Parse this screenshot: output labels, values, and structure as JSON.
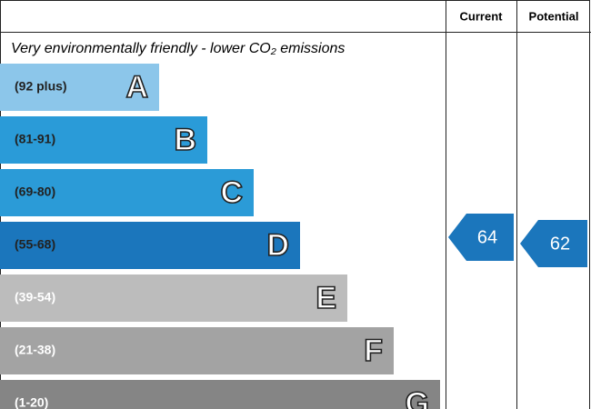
{
  "header": {
    "current": "Current",
    "potential": "Potential"
  },
  "title": "Very environmentally friendly - lower CO₂ emissions",
  "bands": [
    {
      "range": "(92 plus)",
      "letter": "A",
      "color": "#8cc6ea"
    },
    {
      "range": "(81-91)",
      "letter": "B",
      "color": "#2a9bd8"
    },
    {
      "range": "(69-80)",
      "letter": "C",
      "color": "#2b9bd7"
    },
    {
      "range": "(55-68)",
      "letter": "D",
      "color": "#1b76bc"
    },
    {
      "range": "(39-54)",
      "letter": "E",
      "color": "#bcbcbc"
    },
    {
      "range": "(21-38)",
      "letter": "F",
      "color": "#a3a3a3"
    },
    {
      "range": "(1-20)",
      "letter": "G",
      "color": "#858585"
    }
  ],
  "current": {
    "value": 64,
    "color": "#1b76bc"
  },
  "potential": {
    "value": 62,
    "color": "#1b76bc"
  }
}
